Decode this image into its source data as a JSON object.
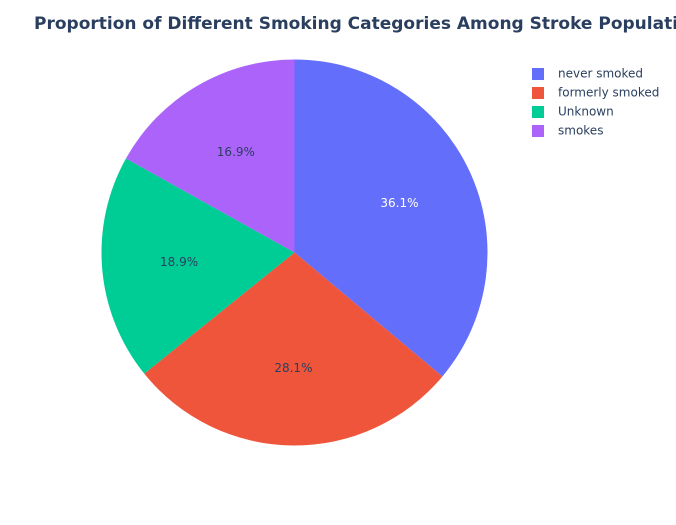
{
  "chart_data": {
    "type": "pie",
    "title": "Proportion of Different Smoking Categories Among Stroke Population",
    "categories": [
      "never smoked",
      "formerly smoked",
      "Unknown",
      "smokes"
    ],
    "values": [
      36.1,
      28.1,
      18.9,
      16.9
    ],
    "labels": [
      "36.1%",
      "28.1%",
      "18.9%",
      "16.9%"
    ],
    "colors": [
      "#636efa",
      "#ef553b",
      "#00cc96",
      "#ab63fa"
    ],
    "label_colors": [
      "#ffffff",
      "#2a3f5f",
      "#2a3f5f",
      "#2a3f5f"
    ],
    "legend_position": "top-right",
    "direction": "clockwise",
    "start": "top"
  }
}
